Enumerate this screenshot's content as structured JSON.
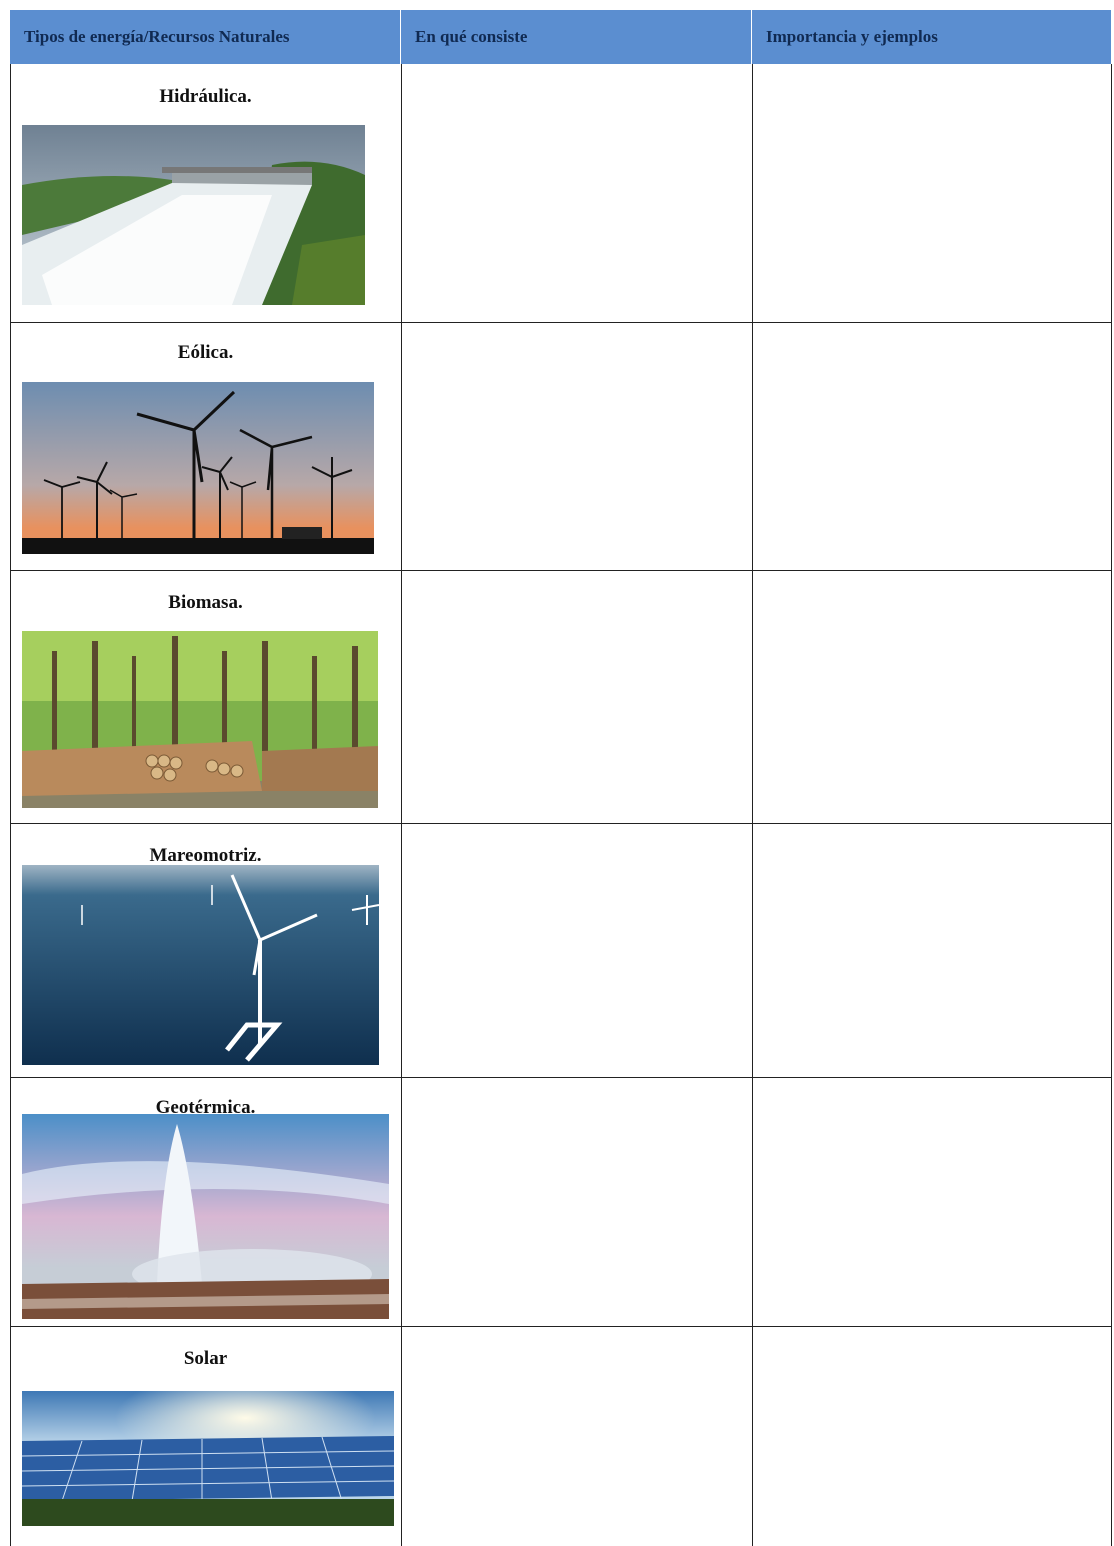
{
  "table": {
    "header": [
      "Tipos de energía/Recursos Naturales",
      "En qué consiste",
      "Importancia y ejemplos"
    ],
    "rows": [
      [
        "Hidráulica."
      ],
      [
        "Eólica."
      ],
      [
        "Biomasa."
      ],
      [
        "Mareomotriz."
      ],
      [
        "Geotérmica."
      ],
      [
        "Solar"
      ]
    ]
  }
}
